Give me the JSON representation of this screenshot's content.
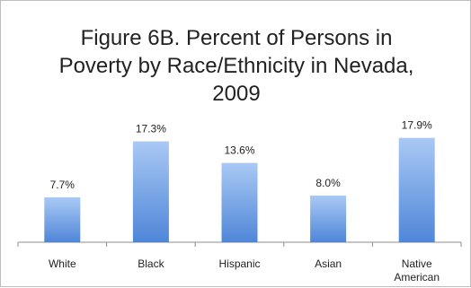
{
  "chart_data": {
    "type": "bar",
    "title_lines": [
      "Figure 6B. Percent of Persons in",
      "Poverty by Race/Ethnicity in Nevada,",
      "2009"
    ],
    "categories": [
      [
        "White"
      ],
      [
        "Black"
      ],
      [
        "Hispanic"
      ],
      [
        "Asian"
      ],
      [
        "Native",
        "American"
      ]
    ],
    "values": [
      7.7,
      17.3,
      13.6,
      8.0,
      17.9
    ],
    "data_labels": [
      "7.7%",
      "17.3%",
      "13.6%",
      "8.0%",
      "17.9%"
    ],
    "ylim": [
      0,
      20
    ],
    "grid": false,
    "legend": "none",
    "colors": {
      "bar_top": "#a9c9f5",
      "bar_bottom": "#4f86d8",
      "axis": "#8c8c8c",
      "frame": "#bdbdbd"
    }
  }
}
